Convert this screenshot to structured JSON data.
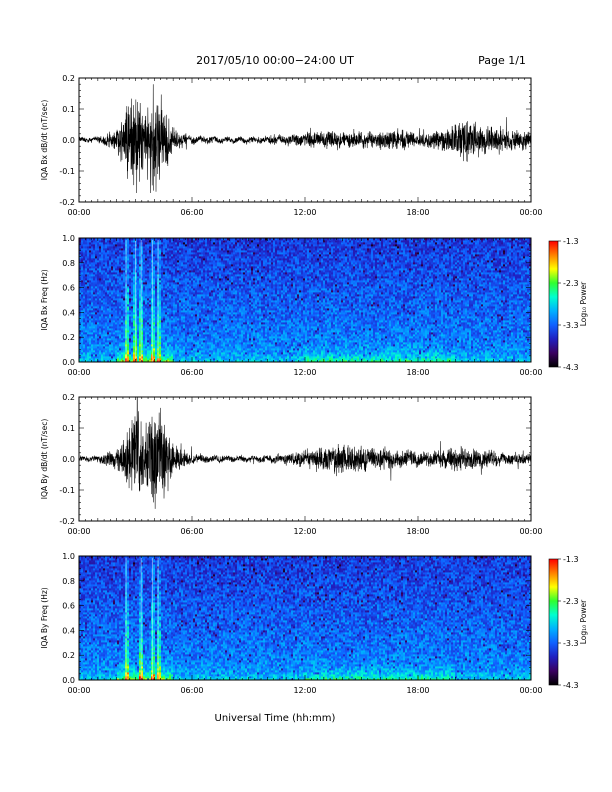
{
  "header": {
    "title": "2017/05/10  00:00−24:00 UT",
    "page": "Page 1/1"
  },
  "footer": {
    "xlabel": "Universal Time (hh:mm)"
  },
  "colors": {
    "colorbar": [
      "#000000",
      "#3a0060",
      "#2020c0",
      "#1060ff",
      "#00b0ff",
      "#00ffd0",
      "#30ff30",
      "#ffff00",
      "#ff8000",
      "#ff0000"
    ]
  },
  "chart_data": [
    {
      "type": "line",
      "name": "panel-1",
      "ylabel": "IQA Bx dB/dt (nT/sec)",
      "xlim": [
        "00:00",
        "24:00"
      ],
      "ylim": [
        -0.2,
        0.2
      ],
      "x_ticks": [
        "00:00",
        "06:00",
        "12:00",
        "18:00",
        "00:00"
      ],
      "y_ticks": [
        "-0.2",
        "-0.1",
        "0.0",
        "0.1",
        "0.2"
      ],
      "activity_profile": {
        "hours": [
          0,
          1,
          2,
          3,
          3.5,
          4,
          4.5,
          5,
          6,
          8,
          10,
          11,
          12,
          13,
          14,
          15,
          16,
          17,
          18,
          19,
          20,
          20.5,
          21,
          22,
          23,
          24
        ],
        "amplitude": [
          0.008,
          0.012,
          0.045,
          0.2,
          0.12,
          0.2,
          0.15,
          0.04,
          0.015,
          0.01,
          0.012,
          0.02,
          0.025,
          0.035,
          0.03,
          0.028,
          0.035,
          0.04,
          0.03,
          0.035,
          0.06,
          0.08,
          0.07,
          0.05,
          0.04,
          0.03
        ]
      }
    },
    {
      "type": "heatmap",
      "name": "panel-2",
      "ylabel": "IQA Bx Freq (Hz)",
      "xlim": [
        "00:00",
        "24:00"
      ],
      "ylim": [
        0.0,
        1.0
      ],
      "x_ticks": [
        "00:00",
        "06:00",
        "12:00",
        "18:00",
        "00:00"
      ],
      "y_ticks": [
        "0.0",
        "0.2",
        "0.4",
        "0.6",
        "0.8",
        "1.0"
      ],
      "colorbar": {
        "label": "Log₁₀ Power",
        "range": [
          -4.3,
          -1.3
        ],
        "ticks": [
          "-1.3",
          "-2.3",
          "-3.3",
          "-4.3"
        ]
      },
      "bright_bands_hours": [
        2.5,
        3.0,
        3.3,
        3.9,
        4.2
      ]
    },
    {
      "type": "line",
      "name": "panel-3",
      "ylabel": "IQA By dB/dt (nT/sec)",
      "xlim": [
        "00:00",
        "24:00"
      ],
      "ylim": [
        -0.2,
        0.2
      ],
      "x_ticks": [
        "00:00",
        "06:00",
        "12:00",
        "18:00",
        "00:00"
      ],
      "y_ticks": [
        "-0.2",
        "-0.1",
        "0.0",
        "0.1",
        "0.2"
      ],
      "activity_profile": {
        "hours": [
          0,
          1,
          2,
          2.5,
          3,
          3.5,
          4,
          4.5,
          5,
          6,
          8,
          10,
          11,
          12,
          13,
          14,
          15,
          16,
          17,
          18,
          19,
          20,
          21,
          22,
          23,
          24
        ],
        "amplitude": [
          0.01,
          0.012,
          0.04,
          0.08,
          0.2,
          0.12,
          0.2,
          0.16,
          0.05,
          0.02,
          0.012,
          0.012,
          0.02,
          0.03,
          0.045,
          0.06,
          0.05,
          0.04,
          0.035,
          0.03,
          0.03,
          0.045,
          0.04,
          0.03,
          0.025,
          0.02
        ]
      }
    },
    {
      "type": "heatmap",
      "name": "panel-4",
      "ylabel": "IQA By Freq (Hz)",
      "xlim": [
        "00:00",
        "24:00"
      ],
      "ylim": [
        0.0,
        1.0
      ],
      "x_ticks": [
        "00:00",
        "06:00",
        "12:00",
        "18:00",
        "00:00"
      ],
      "y_ticks": [
        "0.0",
        "0.2",
        "0.4",
        "0.6",
        "0.8",
        "1.0"
      ],
      "colorbar": {
        "label": "Log₁₀ Power",
        "range": [
          -4.3,
          -1.3
        ],
        "ticks": [
          "-1.3",
          "-2.3",
          "-3.3",
          "-4.3"
        ]
      },
      "bright_bands_hours": [
        2.5,
        3.3,
        3.9,
        4.2
      ]
    }
  ]
}
